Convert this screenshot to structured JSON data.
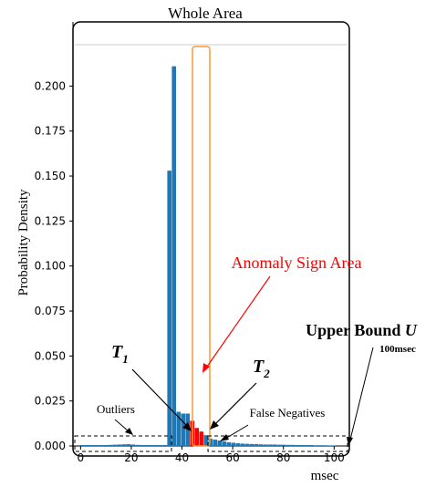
{
  "chart_data": {
    "type": "bar",
    "title": "Whole Area",
    "xlabel": "msec",
    "ylabel": "Probability Density",
    "xlim": [
      -3,
      106
    ],
    "ylim": [
      0,
      0.223
    ],
    "xticks": [
      0,
      20,
      40,
      60,
      80,
      100
    ],
    "yticks": [
      0.0,
      0.025,
      0.05,
      0.075,
      0.1,
      0.125,
      0.15,
      0.175,
      0.2
    ],
    "ytick_labels": [
      "0.000",
      "0.025",
      "0.050",
      "0.075",
      "0.100",
      "0.125",
      "0.150",
      "0.175",
      "0.200"
    ],
    "grid": false,
    "bin_width": 1.8,
    "bins": [
      {
        "x": 0.0,
        "value": 0.0005
      },
      {
        "x": 1.8,
        "value": 0.0005
      },
      {
        "x": 3.6,
        "value": 0.0005
      },
      {
        "x": 5.4,
        "value": 0.0005
      },
      {
        "x": 7.2,
        "value": 0.0005
      },
      {
        "x": 9.0,
        "value": 0.0005
      },
      {
        "x": 10.8,
        "value": 0.0006
      },
      {
        "x": 12.6,
        "value": 0.0007
      },
      {
        "x": 14.4,
        "value": 0.0008
      },
      {
        "x": 16.2,
        "value": 0.0009
      },
      {
        "x": 18.0,
        "value": 0.001
      },
      {
        "x": 19.8,
        "value": 0.0008
      },
      {
        "x": 21.6,
        "value": 0.0006
      },
      {
        "x": 23.4,
        "value": 0.0005
      },
      {
        "x": 25.2,
        "value": 0.0005
      },
      {
        "x": 27.0,
        "value": 0.0005
      },
      {
        "x": 28.8,
        "value": 0.0005
      },
      {
        "x": 30.6,
        "value": 0.0005
      },
      {
        "x": 32.4,
        "value": 0.0005
      },
      {
        "x": 34.2,
        "value": 0.153
      },
      {
        "x": 36.0,
        "value": 0.211
      },
      {
        "x": 37.8,
        "value": 0.019
      },
      {
        "x": 39.6,
        "value": 0.018
      },
      {
        "x": 41.4,
        "value": 0.018
      },
      {
        "x": 43.2,
        "value": 0.014
      },
      {
        "x": 45.0,
        "value": 0.01
      },
      {
        "x": 46.8,
        "value": 0.008
      },
      {
        "x": 48.6,
        "value": 0.006
      },
      {
        "x": 50.4,
        "value": 0.004
      },
      {
        "x": 52.2,
        "value": 0.0035
      },
      {
        "x": 54.0,
        "value": 0.003
      },
      {
        "x": 55.8,
        "value": 0.0025
      },
      {
        "x": 57.6,
        "value": 0.002
      },
      {
        "x": 59.4,
        "value": 0.0018
      },
      {
        "x": 61.2,
        "value": 0.0015
      },
      {
        "x": 63.0,
        "value": 0.0013
      },
      {
        "x": 64.8,
        "value": 0.0012
      },
      {
        "x": 66.6,
        "value": 0.0011
      },
      {
        "x": 68.4,
        "value": 0.001
      },
      {
        "x": 70.2,
        "value": 0.0009
      },
      {
        "x": 72.0,
        "value": 0.0008
      },
      {
        "x": 73.8,
        "value": 0.0008
      },
      {
        "x": 75.6,
        "value": 0.0008
      },
      {
        "x": 77.4,
        "value": 0.0007
      },
      {
        "x": 79.2,
        "value": 0.0007
      },
      {
        "x": 81.0,
        "value": 0.0006
      },
      {
        "x": 82.8,
        "value": 0.0006
      },
      {
        "x": 84.6,
        "value": 0.0005
      },
      {
        "x": 86.4,
        "value": 0.0005
      },
      {
        "x": 88.2,
        "value": 0.0005
      },
      {
        "x": 90.0,
        "value": 0.0005
      },
      {
        "x": 91.8,
        "value": 0.0004
      },
      {
        "x": 93.6,
        "value": 0.0004
      },
      {
        "x": 95.4,
        "value": 0.0004
      },
      {
        "x": 97.2,
        "value": 0.0003
      },
      {
        "x": 99.0,
        "value": 0.0003
      }
    ],
    "anomaly_range": [
      42.9,
      48.2
    ],
    "colors": {
      "bar": "#1f77b4",
      "anomaly": "#ff0000",
      "anomaly_border": "#ff9933",
      "annotation_red": "#ff0000",
      "ref_line": "#cccccc"
    },
    "annotations": {
      "anomaly_label": "Anomaly Sign Area",
      "upper_bound_label": "Upper Bound ",
      "upper_bound_var": "U",
      "upper_bound_value": "100msec",
      "t1_main": "T",
      "t1_sub": "1",
      "t2_main": "T",
      "t2_sub": "2",
      "outliers": "Outliers",
      "false_negatives": "False Negatives"
    }
  }
}
